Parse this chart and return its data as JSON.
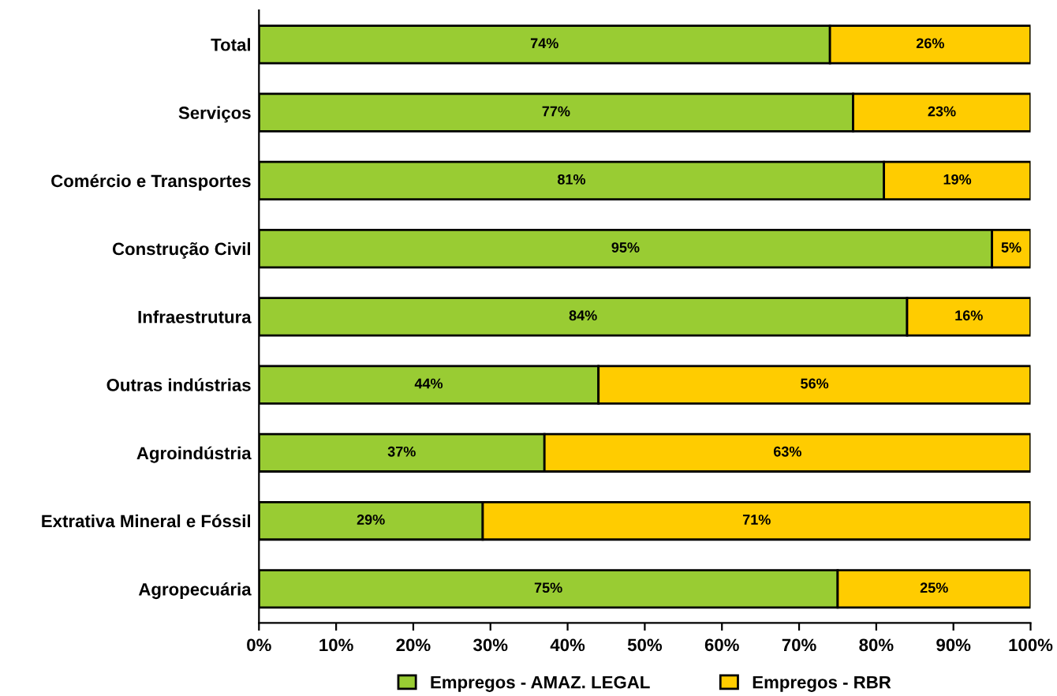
{
  "chart_data": {
    "type": "bar",
    "orientation": "horizontal",
    "stacked": true,
    "categories": [
      "Total",
      "Serviços",
      "Comércio e Transportes",
      "Construção Civil",
      "Infraestrutura",
      "Outras indústrias",
      "Agroindústria",
      "Extrativa Mineral e Fóssil",
      "Agropecuária"
    ],
    "series": [
      {
        "name": "Empregos - AMAZ. LEGAL",
        "color": "#99cc33",
        "values": [
          74,
          77,
          81,
          95,
          84,
          44,
          37,
          29,
          75
        ],
        "value_labels": [
          "74%",
          "77%",
          "81%",
          "95%",
          "84%",
          "44%",
          "37%",
          "29%",
          "75%"
        ]
      },
      {
        "name": "Empregos - RBR",
        "color": "#ffcc00",
        "values": [
          26,
          23,
          19,
          5,
          16,
          56,
          63,
          71,
          25
        ],
        "value_labels": [
          "26%",
          "23%",
          "19%",
          "5%",
          "16%",
          "56%",
          "63%",
          "71%",
          "25%"
        ]
      }
    ],
    "xlim": [
      0,
      100
    ],
    "xticks": [
      {
        "value": 0,
        "label": "0%"
      },
      {
        "value": 10,
        "label": "10%"
      },
      {
        "value": 20,
        "label": "20%"
      },
      {
        "value": 30,
        "label": "30%"
      },
      {
        "value": 40,
        "label": "40%"
      },
      {
        "value": 50,
        "label": "50%"
      },
      {
        "value": 60,
        "label": "60%"
      },
      {
        "value": 70,
        "label": "70%"
      },
      {
        "value": 80,
        "label": "80%"
      },
      {
        "value": 90,
        "label": "90%"
      },
      {
        "value": 100,
        "label": "100%"
      }
    ],
    "grid": false,
    "legend": "bottom"
  }
}
